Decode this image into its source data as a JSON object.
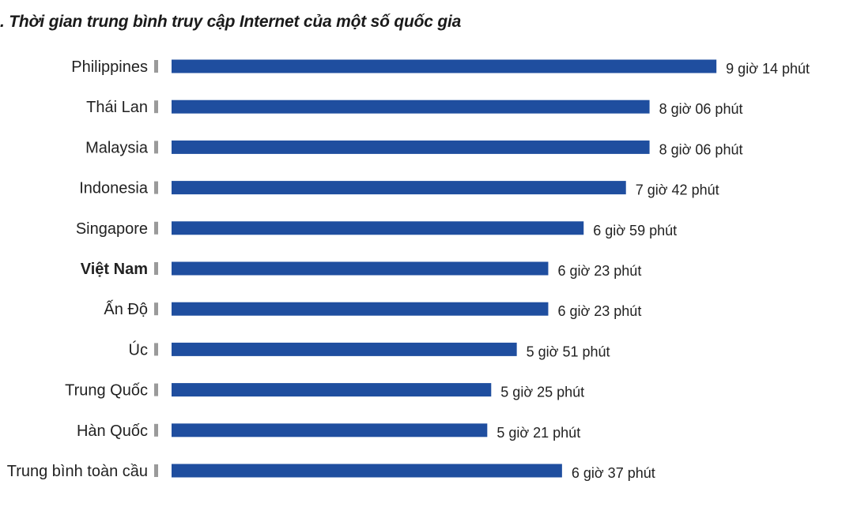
{
  "chart_data": {
    "type": "bar",
    "orientation": "horizontal",
    "title": ". Thời gian trung bình truy cập Internet của một số quốc gia",
    "categories": [
      "Philippines",
      "Thái Lan",
      "Malaysia",
      "Indonesia",
      "Singapore",
      "Việt Nam",
      "Ấn Độ",
      "Úc",
      "Trung Quốc",
      "Hàn Quốc",
      "Trung bình toàn cầu"
    ],
    "values": [
      554,
      486,
      486,
      462,
      419,
      383,
      383,
      351,
      325,
      321,
      397
    ],
    "value_unit": "minutes",
    "value_labels": [
      "9 giờ 14 phút",
      "8 giờ 06 phút",
      "8 giờ 06 phút",
      "7 giờ 42 phút",
      "6 giờ 59 phút",
      "6 giờ 23 phút",
      "6 giờ 23 phút",
      "5 giờ 51 phút",
      "5 giờ 25 phút",
      "5 giờ 21 phút",
      "6 giờ 37 phút"
    ],
    "highlighted_category": "Việt Nam",
    "bar_color": "#1f4e9f",
    "tick_color": "#9a9a9a",
    "grid": false,
    "legend": "none"
  }
}
